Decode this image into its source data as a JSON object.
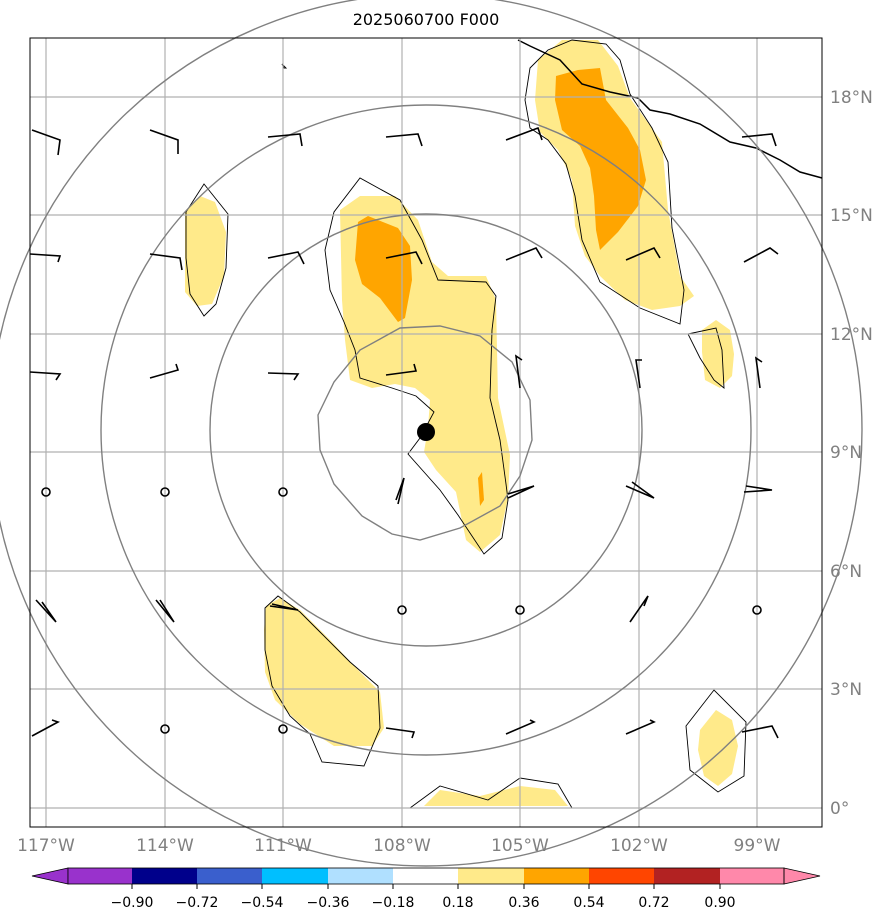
{
  "title": "2025060700 F000",
  "colors": {
    "contour_fill_low": "#ffea8a",
    "contour_fill_high": "#ffa500",
    "grid": "#b0b0b0",
    "rings": "#808080",
    "coast": "#000000"
  },
  "lat_labels": [
    "0°",
    "3°N",
    "6°N",
    "9°N",
    "12°N",
    "15°N",
    "18°N"
  ],
  "lon_labels": [
    "117°W",
    "114°W",
    "111°W",
    "108°W",
    "105°W",
    "102°W",
    "99°W"
  ],
  "colorbar": {
    "ticks": [
      "−0.90",
      "−0.72",
      "−0.54",
      "−0.36",
      "−0.18",
      "0.18",
      "0.36",
      "0.54",
      "0.72",
      "0.90"
    ],
    "colors": [
      "#9932cc",
      "#00008b",
      "#3a5fcd",
      "#00bfff",
      "#b0e0ff",
      "#ffffff",
      "#ffea8a",
      "#ffa500",
      "#ff4500",
      "#b22222",
      "#ff88aa",
      "#ff88aa"
    ]
  },
  "storm_center": {
    "lon": -107.5,
    "lat": 9.5
  }
}
